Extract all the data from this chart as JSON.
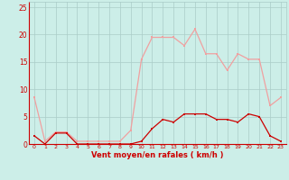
{
  "hours": [
    0,
    1,
    2,
    3,
    4,
    5,
    6,
    7,
    8,
    9,
    10,
    11,
    12,
    13,
    14,
    15,
    16,
    17,
    18,
    19,
    20,
    21,
    22,
    23
  ],
  "wind_gust": [
    8.5,
    0.5,
    2.2,
    2.2,
    0.5,
    0.5,
    0.5,
    0.5,
    0.5,
    2.5,
    15.5,
    19.5,
    19.5,
    19.5,
    18.0,
    21.0,
    16.5,
    16.5,
    13.5,
    16.5,
    15.5,
    15.5,
    7.0,
    8.5
  ],
  "wind_avg": [
    1.5,
    0.0,
    2.0,
    2.0,
    0.0,
    0.0,
    0.0,
    0.0,
    0.0,
    0.0,
    0.5,
    2.8,
    4.5,
    4.0,
    5.5,
    5.5,
    5.5,
    4.5,
    4.5,
    4.0,
    5.5,
    5.0,
    1.5,
    0.5
  ],
  "wind_gust_color": "#f0a0a0",
  "wind_avg_color": "#cc0000",
  "bg_color": "#cceee8",
  "grid_color": "#aaccc8",
  "axis_label_color": "#cc0000",
  "tick_color": "#cc0000",
  "xlabel": "Vent moyen/en rafales ( km/h )",
  "ylim": [
    0,
    26
  ],
  "yticks": [
    0,
    5,
    10,
    15,
    20,
    25
  ],
  "xlim": [
    -0.5,
    23.5
  ]
}
